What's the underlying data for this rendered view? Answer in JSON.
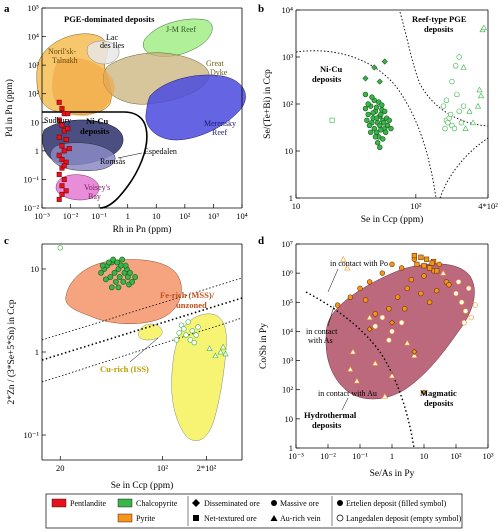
{
  "chart_data": [
    {
      "panel": "a",
      "type": "scatter",
      "xlabel": "Rh in Pn (ppm)",
      "ylabel": "Pd in Pn (ppm)",
      "xscale": "log",
      "yscale": "log",
      "xlim": [
        0.001,
        10000
      ],
      "ylim": [
        0.01,
        100000
      ],
      "xticks": [
        {
          "v": 0.001,
          "t": "10⁻³"
        },
        {
          "v": 0.01,
          "t": "10⁻²"
        },
        {
          "v": 0.1,
          "t": "10⁻¹"
        },
        {
          "v": 1,
          "t": "1"
        },
        {
          "v": 10,
          "t": "10"
        },
        {
          "v": 100,
          "t": "10²"
        },
        {
          "v": 1000,
          "t": "10³"
        },
        {
          "v": 10000,
          "t": "10⁴"
        }
      ],
      "yticks": [
        {
          "v": 0.01,
          "t": "10⁻²"
        },
        {
          "v": 0.1,
          "t": "10⁻¹"
        },
        {
          "v": 1,
          "t": "1"
        },
        {
          "v": 10,
          "t": "10"
        },
        {
          "v": 100,
          "t": "10²"
        },
        {
          "v": 1000,
          "t": "10³"
        },
        {
          "v": 10000,
          "t": "10⁴"
        },
        {
          "v": 100000,
          "t": "10⁵"
        }
      ],
      "labels": {
        "title": "PGE-dominated deposits",
        "noril": "Noril'sk-\nTalnakh",
        "lac": "Lac\ndes Iles",
        "jm": "J-M Reef",
        "great": "Great\nDyke",
        "merensky": "Merensky\nReef",
        "sudbury": "Sudbury",
        "nicu": "Ni-Cu\ndeposits",
        "espedalen": "Espedalen",
        "romsas": "Romsås",
        "voisey": "Voisey's\nBay"
      },
      "pentlandite_points": [
        [
          0.004,
          50
        ],
        [
          0.005,
          30
        ],
        [
          0.006,
          20
        ],
        [
          0.004,
          12
        ],
        [
          0.005,
          8
        ],
        [
          0.006,
          5
        ],
        [
          0.004,
          3
        ],
        [
          0.007,
          2.5
        ],
        [
          0.005,
          1.5
        ],
        [
          0.006,
          1
        ],
        [
          0.004,
          0.7
        ],
        [
          0.005,
          0.5
        ],
        [
          0.007,
          0.4
        ],
        [
          0.005,
          0.25
        ],
        [
          0.004,
          0.15
        ],
        [
          0.006,
          0.1
        ],
        [
          0.005,
          0.06
        ],
        [
          0.007,
          0.04
        ],
        [
          0.005,
          0.03
        ],
        [
          0.008,
          20
        ],
        [
          0.008,
          6
        ],
        [
          0.009,
          1.2
        ],
        [
          0.006,
          0.3
        ],
        [
          0.004,
          0.02
        ]
      ]
    },
    {
      "panel": "b",
      "type": "scatter",
      "xlabel": "Se in Ccp (ppm)",
      "ylabel": "Se/(Te+Bi) in Ccp",
      "xscale": "log",
      "yscale": "log",
      "xlim": [
        10,
        400
      ],
      "ylim": [
        1,
        10000
      ],
      "xticks": [
        {
          "v": 10,
          "t": "10"
        },
        {
          "v": 100,
          "t": "10²"
        },
        {
          "v": 400,
          "t": "4*10²"
        }
      ],
      "yticks": [
        {
          "v": 1,
          "t": "1"
        },
        {
          "v": 10,
          "t": "10"
        },
        {
          "v": 100,
          "t": "10²"
        },
        {
          "v": 1000,
          "t": "10³"
        },
        {
          "v": 10000,
          "t": "10⁴"
        }
      ],
      "labels": {
        "reef": "Reef-type PGE\ndeposits",
        "nicu": "Ni-Cu\ndeposits"
      },
      "ertelien_points": [
        [
          38,
          80
        ],
        [
          40,
          60
        ],
        [
          42,
          90
        ],
        [
          44,
          50
        ],
        [
          46,
          70
        ],
        [
          48,
          40
        ],
        [
          50,
          55
        ],
        [
          52,
          75
        ],
        [
          45,
          30
        ],
        [
          47,
          25
        ],
        [
          50,
          35
        ],
        [
          53,
          45
        ],
        [
          55,
          30
        ],
        [
          43,
          40
        ],
        [
          41,
          35
        ],
        [
          49,
          20
        ],
        [
          51,
          60
        ],
        [
          54,
          40
        ],
        [
          56,
          25
        ],
        [
          58,
          35
        ],
        [
          39,
          45
        ],
        [
          42,
          25
        ],
        [
          44,
          65
        ],
        [
          47,
          85
        ],
        [
          49,
          110
        ],
        [
          52,
          95
        ],
        [
          55,
          70
        ],
        [
          57,
          50
        ],
        [
          60,
          45
        ],
        [
          62,
          30
        ],
        [
          46,
          20
        ],
        [
          48,
          15
        ],
        [
          50,
          12
        ],
        [
          53,
          18
        ],
        [
          40,
          100
        ],
        [
          45,
          120
        ],
        [
          43,
          140
        ],
        [
          38,
          160
        ],
        [
          47,
          50
        ],
        [
          51,
          28
        ]
      ],
      "ertelien_diamonds": [
        [
          45,
          600
        ],
        [
          55,
          800
        ],
        [
          38,
          350
        ],
        [
          50,
          300
        ]
      ],
      "langedalen_circles": [
        [
          175,
          30
        ],
        [
          180,
          45
        ],
        [
          190,
          50
        ],
        [
          185,
          40
        ],
        [
          200,
          35
        ],
        [
          195,
          60
        ],
        [
          210,
          30
        ],
        [
          170,
          90
        ],
        [
          180,
          120
        ],
        [
          220,
          160
        ],
        [
          230,
          70
        ],
        [
          250,
          90
        ],
        [
          240,
          40
        ],
        [
          200,
          300
        ],
        [
          215,
          650
        ],
        [
          230,
          1000
        ]
      ],
      "langedalen_triangles": [
        [
          360,
          3800
        ],
        [
          370,
          4200
        ],
        [
          250,
          600
        ],
        [
          350,
          150
        ],
        [
          330,
          90
        ],
        [
          280,
          70
        ],
        [
          300,
          40
        ],
        [
          260,
          30
        ],
        [
          340,
          200
        ]
      ],
      "langedalen_squares": [
        [
          20,
          45
        ]
      ]
    },
    {
      "panel": "c",
      "type": "scatter",
      "xlabel": "Se in Ccp (ppm)",
      "ylabel": "2*Zn / (3*Se+5*Sn) in Ccp",
      "xscale": "log",
      "yscale": "log",
      "xlim": [
        15,
        350
      ],
      "ylim": [
        0.05,
        20
      ],
      "xticks": [
        {
          "v": 20,
          "t": "20"
        },
        {
          "v": 100,
          "t": "10²"
        },
        {
          "v": 200,
          "t": "2*10²"
        }
      ],
      "yticks": [
        {
          "v": 0.1,
          "t": "10⁻¹"
        },
        {
          "v": 1,
          "t": "1"
        },
        {
          "v": 10,
          "t": "10"
        }
      ],
      "labels": {
        "fe_rich": "Fe-rich (MSS)/\nunzoned",
        "cu_rich": "Cu-rich (ISS)"
      },
      "ertelien_points": [
        [
          40,
          10
        ],
        [
          42,
          11
        ],
        [
          45,
          12
        ],
        [
          47,
          9
        ],
        [
          50,
          10
        ],
        [
          52,
          11
        ],
        [
          55,
          9
        ],
        [
          57,
          10
        ],
        [
          44,
          8
        ],
        [
          48,
          7
        ],
        [
          51,
          8
        ],
        [
          54,
          7
        ],
        [
          58,
          8
        ],
        [
          60,
          9
        ],
        [
          43,
          12
        ],
        [
          46,
          13
        ],
        [
          49,
          12
        ],
        [
          53,
          13
        ],
        [
          56,
          11
        ],
        [
          38,
          9
        ],
        [
          41,
          7.5
        ],
        [
          59,
          6.5
        ],
        [
          62,
          7
        ],
        [
          45,
          6
        ],
        [
          50,
          6
        ],
        [
          39,
          11
        ],
        [
          65,
          8
        ]
      ],
      "langedalen_circles": [
        [
          20,
          18
        ],
        [
          135,
          2.1
        ],
        [
          140,
          1.9
        ],
        [
          145,
          1.6
        ],
        [
          150,
          2.3
        ],
        [
          130,
          1.7
        ],
        [
          160,
          1.8
        ],
        [
          170,
          1.6
        ],
        [
          175,
          2.0
        ],
        [
          125,
          1.4
        ],
        [
          155,
          1.4
        ],
        [
          165,
          1.3
        ]
      ],
      "langedalen_triangles": [
        [
          210,
          1.1
        ],
        [
          230,
          0.9
        ],
        [
          250,
          1.0
        ],
        [
          270,
          0.95
        ],
        [
          260,
          1.15
        ]
      ]
    },
    {
      "panel": "d",
      "type": "scatter",
      "xlabel": "Se/As in Py",
      "ylabel": "Co/Sb in Py",
      "xscale": "log",
      "yscale": "log",
      "xlim": [
        0.001,
        1000
      ],
      "ylim": [
        1,
        10000000
      ],
      "xticks": [
        {
          "v": 0.001,
          "t": "10⁻³"
        },
        {
          "v": 0.01,
          "t": "10⁻²"
        },
        {
          "v": 0.1,
          "t": "10⁻¹"
        },
        {
          "v": 1,
          "t": "1"
        },
        {
          "v": 10,
          "t": "10"
        },
        {
          "v": 100,
          "t": "10²"
        },
        {
          "v": 1000,
          "t": "10³"
        }
      ],
      "yticks": [
        {
          "v": 1,
          "t": "1"
        },
        {
          "v": 10,
          "t": "10"
        },
        {
          "v": 100,
          "t": "10²"
        },
        {
          "v": 1000,
          "t": "10³"
        },
        {
          "v": 10000,
          "t": "10⁴"
        },
        {
          "v": 100000,
          "t": "10⁵"
        },
        {
          "v": 1000000,
          "t": "10⁶"
        },
        {
          "v": 10000000,
          "t": "10⁷"
        }
      ],
      "labels": {
        "contact_po": "in contact with Po",
        "contact_as": "in contact\nwith As",
        "contact_au": "in contact with Au",
        "hydrothermal": "Hydrothermal\ndeposits",
        "magmatic": "Magmatic\ndeposits"
      },
      "ertelien_points": [
        [
          0.02,
          80000
        ],
        [
          0.05,
          150000
        ],
        [
          0.1,
          300000
        ],
        [
          0.2,
          500000
        ],
        [
          0.5,
          1000000
        ],
        [
          1,
          2000000
        ],
        [
          2,
          1500000
        ],
        [
          5,
          3000000
        ],
        [
          10,
          800000
        ],
        [
          20,
          1200000
        ],
        [
          50,
          500000
        ],
        [
          3,
          300000
        ],
        [
          1.5,
          150000
        ],
        [
          0.8,
          60000
        ],
        [
          0.3,
          40000
        ],
        [
          8,
          200000
        ],
        [
          15,
          100000
        ],
        [
          30,
          2000000
        ],
        [
          60,
          400000
        ],
        [
          0.15,
          120000
        ],
        [
          4,
          600000
        ],
        [
          25,
          250000
        ],
        [
          2.5,
          60000
        ]
      ],
      "ertelien_squares": [
        [
          5,
          4000000
        ],
        [
          8,
          3500000
        ],
        [
          12,
          3000000
        ],
        [
          20,
          2500000
        ],
        [
          6,
          2000000
        ],
        [
          10,
          1800000
        ],
        [
          15,
          1500000
        ],
        [
          18,
          2200000
        ],
        [
          25,
          1200000
        ]
      ],
      "langedalen_circles": [
        [
          100,
          200000
        ],
        [
          150,
          100000
        ],
        [
          200,
          50000
        ],
        [
          300,
          30000
        ],
        [
          250,
          300000
        ],
        [
          180,
          20000
        ],
        [
          120,
          500000
        ],
        [
          400,
          80000
        ],
        [
          0.5,
          30000
        ],
        [
          0.3,
          15000
        ],
        [
          1,
          10000
        ],
        [
          0.8,
          5000
        ],
        [
          2,
          20000
        ]
      ],
      "langedalen_triangles": [
        [
          0.03,
          3000000
        ],
        [
          0.04,
          1500000
        ],
        [
          0.06,
          2000
        ],
        [
          0.05,
          500
        ],
        [
          0.08,
          200
        ],
        [
          0.3,
          800
        ],
        [
          1,
          300
        ],
        [
          0.6,
          60
        ],
        [
          3,
          4000
        ],
        [
          5,
          1500
        ],
        [
          40,
          1000000
        ],
        [
          0.2,
          30000
        ]
      ],
      "diamonds": [
        [
          1,
          20000
        ],
        [
          5,
          2000
        ],
        [
          10,
          80
        ],
        [
          0.2,
          12000
        ]
      ]
    }
  ],
  "legend": {
    "pentlandite": "Pentlandite",
    "chalcopyrite": "Chalcopyrite",
    "pyrite": "Pyrite",
    "disseminated": "Disseminated ore",
    "net_textured": "Net-textured ore",
    "massive": "Massive ore",
    "au_vein": "Au-rich vein",
    "ertelien": "Ertelien deposit (filled symbol)",
    "langedalen": "Langedalen deposit (empty symbol)"
  },
  "colors": {
    "pentlandite": "#e8111e",
    "chalcopyrite": "#39b54a",
    "pyrite": "#f7941d",
    "sudbury": "#2b2f6a",
    "magmatic": "#b5586f",
    "cu_rich": "#f7f36b",
    "fe_rich": "#f59a72",
    "merensky": "#4a4adf",
    "jm": "#9ae98a",
    "noril": "#e8a83a",
    "great": "#c9b27a"
  }
}
